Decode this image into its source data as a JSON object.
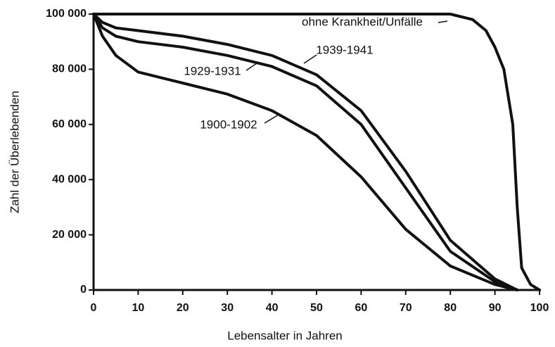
{
  "chart_data": {
    "type": "line",
    "x_label": "Lebensalter in Jahren",
    "y_label": "Zahl der Überlebenden",
    "xlim": [
      0,
      100
    ],
    "ylim": [
      0,
      100000
    ],
    "xticks": [
      0,
      10,
      20,
      30,
      40,
      50,
      60,
      70,
      80,
      90,
      100
    ],
    "yticks": [
      {
        "value": 0,
        "label": "0"
      },
      {
        "value": 20000,
        "label": "20 000"
      },
      {
        "value": 40000,
        "label": "40 000"
      },
      {
        "value": 60000,
        "label": "60 000"
      },
      {
        "value": 80000,
        "label": "80 000"
      },
      {
        "value": 100000,
        "label": "100 000"
      }
    ],
    "series": [
      {
        "name": "ohne Krankheit/Unfälle",
        "color": "#111111",
        "x": [
          0,
          20,
          40,
          60,
          80,
          85,
          88,
          90,
          92,
          94,
          95,
          96,
          98,
          100
        ],
        "values": [
          100000,
          100000,
          100000,
          100000,
          100000,
          98000,
          94000,
          88000,
          80000,
          60000,
          30000,
          8000,
          2000,
          0
        ]
      },
      {
        "name": "1939-1941",
        "color": "#111111",
        "x": [
          0,
          2,
          5,
          10,
          20,
          30,
          40,
          50,
          60,
          70,
          80,
          90,
          95
        ],
        "values": [
          100000,
          97000,
          95000,
          94000,
          92000,
          89000,
          85000,
          78000,
          65000,
          43000,
          18000,
          4000,
          0
        ]
      },
      {
        "name": "1929-1931",
        "color": "#111111",
        "x": [
          0,
          2,
          5,
          10,
          20,
          30,
          40,
          50,
          60,
          70,
          80,
          90,
          95
        ],
        "values": [
          100000,
          95000,
          92000,
          90000,
          88000,
          85000,
          81000,
          74000,
          60000,
          37000,
          14000,
          3000,
          0
        ]
      },
      {
        "name": "1900-1902",
        "color": "#111111",
        "x": [
          0,
          2,
          5,
          10,
          15,
          20,
          30,
          40,
          50,
          60,
          70,
          80,
          90,
          95
        ],
        "values": [
          100000,
          92000,
          85000,
          79000,
          77000,
          75000,
          71000,
          65000,
          56000,
          41000,
          22000,
          8700,
          2000,
          0
        ]
      }
    ]
  }
}
